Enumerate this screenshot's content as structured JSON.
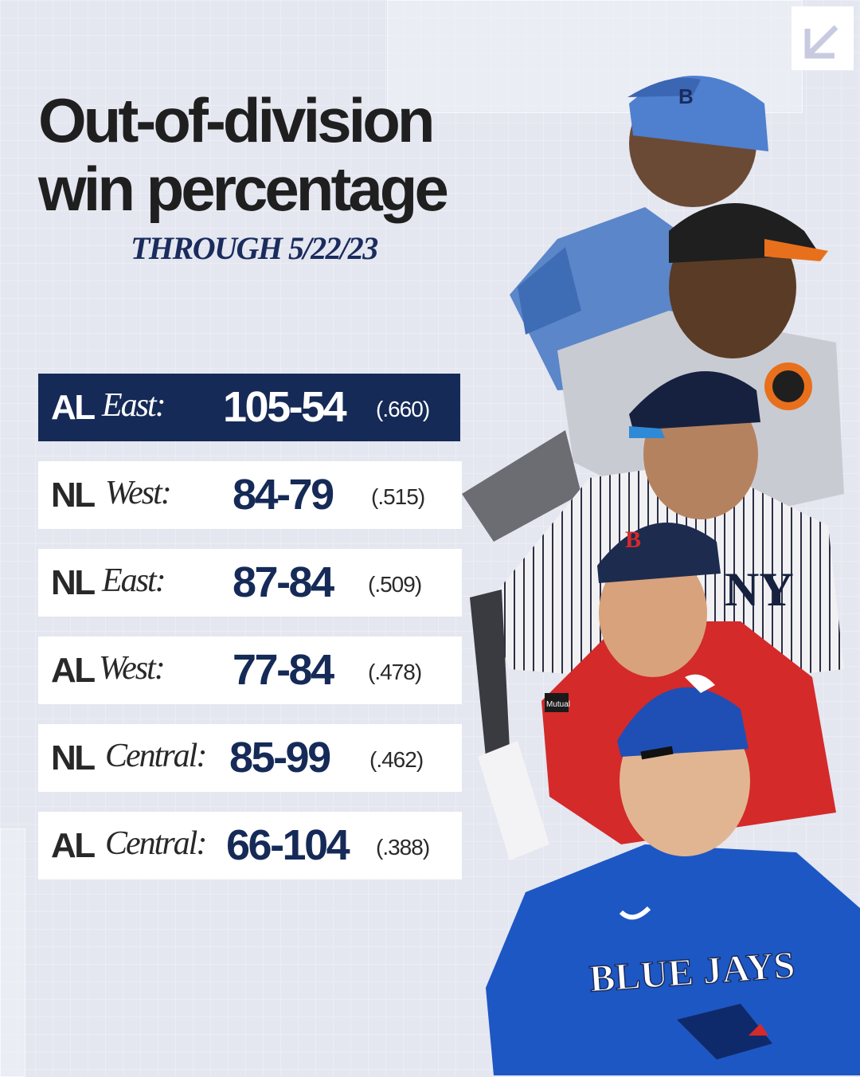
{
  "header": {
    "title_line1": "Out-of-division",
    "title_line2": "win percentage",
    "subtitle": "THROUGH 5/22/23"
  },
  "standings": [
    {
      "league": "AL",
      "division": "East:",
      "record": "105-54",
      "pct": "(.660)",
      "highlight": true
    },
    {
      "league": "NL",
      "division": "West:",
      "record": "84-79",
      "pct": "(.515)",
      "highlight": false
    },
    {
      "league": "NL",
      "division": "East:",
      "record": "87-84",
      "pct": "(.509)",
      "highlight": false
    },
    {
      "league": "AL",
      "division": "West:",
      "record": "77-84",
      "pct": "(.478)",
      "highlight": false
    },
    {
      "league": "NL",
      "division": "Central:",
      "record": "85-99",
      "pct": "(.462)",
      "highlight": false
    },
    {
      "league": "AL",
      "division": "Central:",
      "record": "66-104",
      "pct": "(.388)",
      "highlight": false
    }
  ],
  "players_image": {
    "jersey_text": "BLUE JAYS",
    "helmet_letter": "B",
    "sleeve_text": "Mutual"
  },
  "logo": {
    "icon": "arrow-down-left-icon"
  },
  "colors": {
    "background": "#e4e6f0",
    "navy": "#152a57",
    "blue_jays": "#1d57c4",
    "red_sox": "#d42a2a",
    "orioles_orange": "#e8701c"
  }
}
